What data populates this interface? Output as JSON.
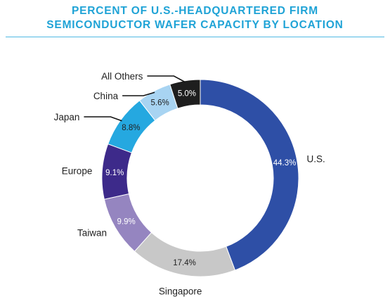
{
  "title_line1": "PERCENT OF U.S.-HEADQUARTERED FIRM",
  "title_line2": "SEMICONDUCTOR WAFER CAPACITY BY LOCATION",
  "chart_data": {
    "type": "pie",
    "style": "donut",
    "title": "PERCENT OF U.S.-HEADQUARTERED FIRM SEMICONDUCTOR WAFER CAPACITY BY LOCATION",
    "categories": [
      "U.S.",
      "Singapore",
      "Taiwan",
      "Europe",
      "Japan",
      "China",
      "All Others"
    ],
    "values": [
      44.3,
      17.4,
      9.9,
      9.1,
      8.8,
      5.6,
      5.0
    ],
    "value_labels": [
      "44.3%",
      "17.4%",
      "9.9%",
      "9.1%",
      "8.8%",
      "5.6%",
      "5.0%"
    ],
    "colors": [
      "#2e4fa6",
      "#c8c8c8",
      "#9585c0",
      "#3d2a8a",
      "#25a8e0",
      "#a8d4f2",
      "#1e1e1e"
    ],
    "label_colors": [
      "#ffffff",
      "#222222",
      "#ffffff",
      "#ffffff",
      "#222222",
      "#222222",
      "#ffffff"
    ],
    "legend": "none"
  }
}
